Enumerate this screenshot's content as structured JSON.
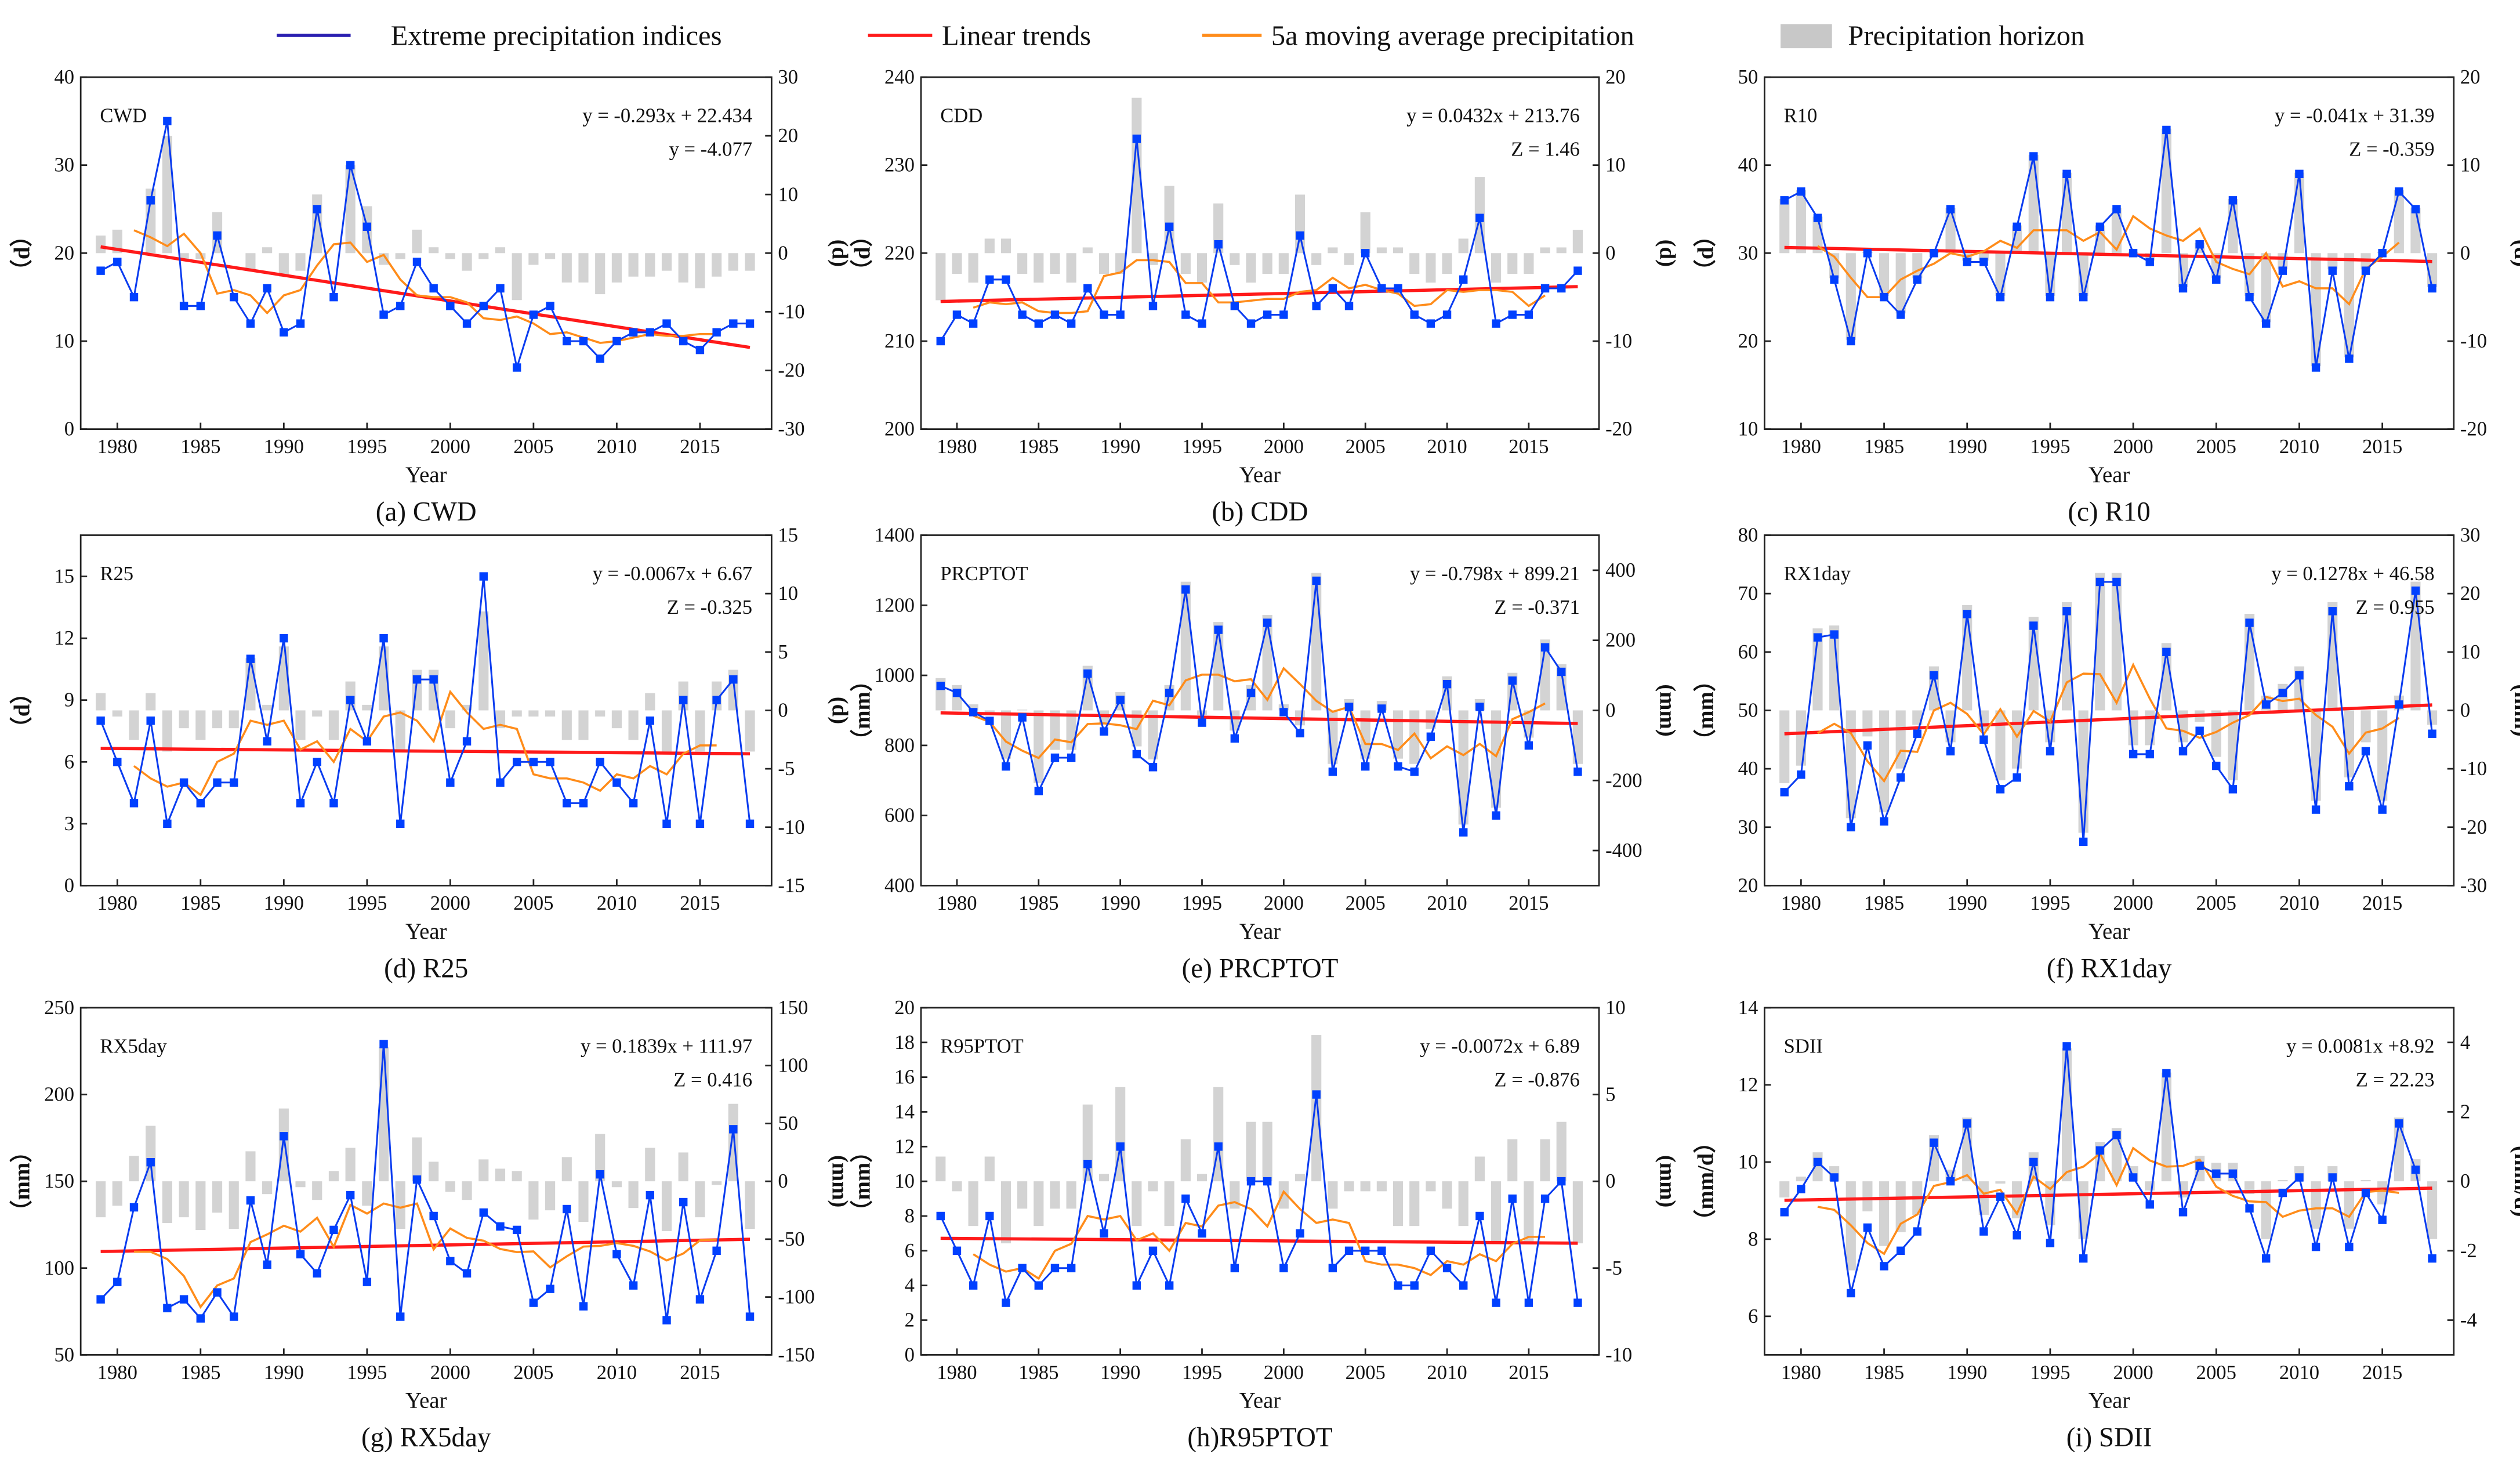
{
  "legend": {
    "indices": "Extreme precipitation indices",
    "trend": "Linear trends",
    "moving": "5a moving average precipitation",
    "horizon": "Precipitation horizon"
  },
  "colors": {
    "index": "#0a3cf0",
    "marker": "#0040ff",
    "trend": "#ff1a1a",
    "moving": "#ff8c1a",
    "bar": "#d3d3d3"
  },
  "chart_data": [
    {
      "type": "line",
      "id": "a",
      "name": "CWD",
      "caption": "(a) CWD",
      "xlabel": "Year",
      "ylabel": "（d）",
      "ylabel_right": "(d)",
      "annotations": [
        "y = -0.293x + 22.434",
        "y = -4.077"
      ],
      "x_start": 1979,
      "ylim": [
        0,
        40
      ],
      "yticks": [
        0,
        10,
        20,
        30,
        40
      ],
      "y2lim": [
        -30,
        30
      ],
      "y2ticks": [
        -30,
        -20,
        -10,
        0,
        10,
        20,
        30
      ],
      "values": [
        18,
        19,
        15,
        26,
        35,
        14,
        14,
        22,
        15,
        12,
        16,
        11,
        12,
        25,
        15,
        30,
        23,
        13,
        14,
        19,
        16,
        14,
        12,
        14,
        16,
        7,
        13,
        14,
        10,
        10,
        8,
        10,
        11,
        11,
        12,
        10,
        9,
        11,
        12,
        12
      ]
    },
    {
      "type": "line",
      "id": "b",
      "name": "CDD",
      "caption": "(b) CDD",
      "xlabel": "Year",
      "ylabel": "（d）",
      "ylabel_right": "(d)",
      "annotations": [
        "y = 0.0432x + 213.76",
        "Z = 1.46"
      ],
      "x_start": 1979,
      "ylim": [
        200,
        240
      ],
      "yticks": [
        200,
        210,
        220,
        230,
        240
      ],
      "y2lim": [
        -20,
        20
      ],
      "y2ticks": [
        -20,
        -10,
        0,
        10,
        20
      ],
      "values": [
        210,
        213,
        212,
        217,
        217,
        213,
        212,
        213,
        212,
        216,
        213,
        213,
        233,
        214,
        223,
        213,
        212,
        221,
        214,
        212,
        213,
        213,
        222,
        214,
        216,
        214,
        220,
        216,
        216,
        213,
        212,
        213,
        217,
        224,
        212,
        213,
        213,
        216,
        216,
        218
      ]
    },
    {
      "type": "line",
      "id": "c",
      "name": "R10",
      "caption": "(c) R10",
      "xlabel": "Year",
      "ylabel": "（d）",
      "ylabel_right": "(d)",
      "annotations": [
        "y = -0.041x + 31.39",
        "Z = -0.359"
      ],
      "x_start": 1979,
      "ylim": [
        10,
        50
      ],
      "yticks": [
        10,
        20,
        30,
        40,
        50
      ],
      "y2lim": [
        -20,
        20
      ],
      "y2ticks": [
        -20,
        -10,
        0,
        10,
        20
      ],
      "values": [
        36,
        37,
        34,
        27,
        20,
        30,
        25,
        23,
        27,
        30,
        35,
        29,
        29,
        25,
        33,
        41,
        25,
        39,
        25,
        33,
        35,
        30,
        29,
        44,
        26,
        31,
        27,
        36,
        25,
        22,
        28,
        39,
        17,
        28,
        18,
        28,
        30,
        37,
        35,
        26
      ]
    },
    {
      "type": "line",
      "id": "d",
      "name": "R25",
      "caption": "(d) R25",
      "xlabel": "Year",
      "ylabel": "（d）",
      "ylabel_right": "(d)",
      "annotations": [
        "y = -0.0067x + 6.67",
        "Z = -0.325"
      ],
      "x_start": 1979,
      "ylim": [
        0,
        17
      ],
      "yticks": [
        0,
        3,
        6,
        9,
        12,
        15
      ],
      "y2lim": [
        -15,
        15
      ],
      "y2ticks": [
        -15,
        -10,
        -5,
        0,
        5,
        10,
        15
      ],
      "values": [
        8,
        6,
        4,
        8,
        3,
        5,
        4,
        5,
        5,
        11,
        7,
        12,
        4,
        6,
        4,
        9,
        7,
        12,
        3,
        10,
        10,
        5,
        7,
        15,
        5,
        6,
        6,
        6,
        4,
        4,
        6,
        5,
        4,
        8,
        3,
        9,
        3,
        9,
        10,
        3
      ]
    },
    {
      "type": "line",
      "id": "e",
      "name": "PRCPTOT",
      "caption": "(e) PRCPTOT",
      "xlabel": "Year",
      "ylabel": "（mm）",
      "ylabel_right": "(mm)",
      "annotations": [
        "y = -0.798x + 899.21",
        "Z = -0.371"
      ],
      "x_start": 1979,
      "ylim": [
        400,
        1400
      ],
      "yticks": [
        400,
        600,
        800,
        1000,
        1200,
        1400
      ],
      "y2lim": [
        -500,
        500
      ],
      "y2ticks": [
        -400,
        -200,
        0,
        200,
        400
      ],
      "values": [
        970,
        950,
        895,
        870,
        740,
        880,
        670,
        765,
        765,
        1005,
        840,
        930,
        775,
        738,
        950,
        1245,
        865,
        1130,
        820,
        950,
        1150,
        895,
        835,
        1270,
        725,
        910,
        740,
        905,
        740,
        725,
        825,
        975,
        552,
        910,
        600,
        985,
        800,
        1080,
        1010,
        725
      ]
    },
    {
      "type": "line",
      "id": "f",
      "name": "RX1day",
      "caption": "(f) RX1day",
      "xlabel": "Year",
      "ylabel": "（mm）",
      "ylabel_right": "(mm)",
      "annotations": [
        "y = 0.1278x + 46.58",
        "Z = 0.955"
      ],
      "x_start": 1979,
      "ylim": [
        20,
        80
      ],
      "yticks": [
        20,
        30,
        40,
        50,
        60,
        70,
        80
      ],
      "y2lim": [
        -30,
        30
      ],
      "y2ticks": [
        -30,
        -20,
        -10,
        0,
        10,
        20,
        30
      ],
      "values": [
        36,
        39,
        62.5,
        63,
        30,
        44,
        31,
        38.5,
        46,
        56,
        43,
        66.5,
        45,
        36.5,
        38.5,
        64.5,
        43,
        67,
        27.5,
        72,
        72,
        42.5,
        42.5,
        60,
        43,
        46.5,
        40.5,
        36.5,
        65,
        51,
        53,
        56,
        33,
        67,
        37,
        43,
        33,
        51,
        70.5,
        46
      ]
    },
    {
      "type": "line",
      "id": "g",
      "name": "RX5day",
      "caption": "(g) RX5day",
      "xlabel": "Year",
      "ylabel": "（mm）",
      "ylabel_right": "(mm)",
      "annotations": [
        "y = 0.1839x + 111.97",
        "Z = 0.416"
      ],
      "x_start": 1979,
      "ylim": [
        50,
        250
      ],
      "yticks": [
        50,
        100,
        150,
        200,
        250
      ],
      "y2lim": [
        -150,
        150
      ],
      "y2ticks": [
        -150,
        -100,
        -50,
        0,
        50,
        100,
        150
      ],
      "values": [
        82,
        92,
        135,
        161,
        77,
        82,
        71,
        86,
        72,
        139,
        102,
        176,
        108,
        97,
        122,
        142,
        92,
        229,
        72,
        151,
        130,
        104,
        97,
        132,
        124,
        122,
        80,
        88,
        134,
        78,
        154,
        108,
        90,
        142,
        70,
        138,
        82,
        110,
        180,
        72
      ]
    },
    {
      "type": "line",
      "id": "h",
      "name": "R95PTOT",
      "caption": "(h)R95PTOT",
      "xlabel": "Year",
      "ylabel": "（mm）",
      "ylabel_right": "(mm)",
      "annotations": [
        "y = -0.0072x + 6.89",
        "Z = -0.876"
      ],
      "x_start": 1979,
      "ylim": [
        0,
        20
      ],
      "yticks": [
        0,
        2,
        4,
        6,
        8,
        10,
        12,
        14,
        16,
        18,
        20
      ],
      "y2lim": [
        -10,
        10
      ],
      "y2ticks": [
        -10,
        -5,
        0,
        5,
        10
      ],
      "values": [
        8,
        6,
        4,
        8,
        3,
        5,
        4,
        5,
        5,
        11,
        7,
        12,
        4,
        6,
        4,
        9,
        7,
        12,
        5,
        10,
        10,
        5,
        7,
        15,
        5,
        6,
        6,
        6,
        4,
        4,
        6,
        5,
        4,
        8,
        3,
        9,
        3,
        9,
        10,
        3
      ]
    },
    {
      "type": "line",
      "id": "i",
      "name": "SDII",
      "caption": "(i) SDII",
      "xlabel": "Year",
      "ylabel": "（mm/d）",
      "ylabel_right": "(mm/d)",
      "annotations": [
        "y = 0.0081x +8.92",
        "Z = 22.23"
      ],
      "x_start": 1979,
      "ylim": [
        5,
        14
      ],
      "yticks": [
        6,
        8,
        10,
        12,
        14
      ],
      "y2lim": [
        -5,
        5
      ],
      "y2ticks": [
        -4,
        -2,
        0,
        2,
        4
      ],
      "values": [
        8.7,
        9.3,
        10.0,
        9.6,
        6.6,
        8.3,
        7.3,
        7.7,
        8.2,
        10.5,
        9.5,
        11.0,
        8.2,
        9.1,
        8.1,
        10.0,
        7.9,
        13.0,
        7.5,
        10.3,
        10.7,
        9.6,
        8.9,
        12.3,
        8.7,
        9.9,
        9.7,
        9.7,
        8.8,
        7.5,
        9.2,
        9.6,
        7.8,
        9.6,
        7.8,
        9.2,
        8.5,
        11.0,
        9.8,
        7.5
      ]
    }
  ],
  "xticks": [
    1980,
    1985,
    1990,
    1995,
    2000,
    2005,
    2010,
    2015
  ]
}
